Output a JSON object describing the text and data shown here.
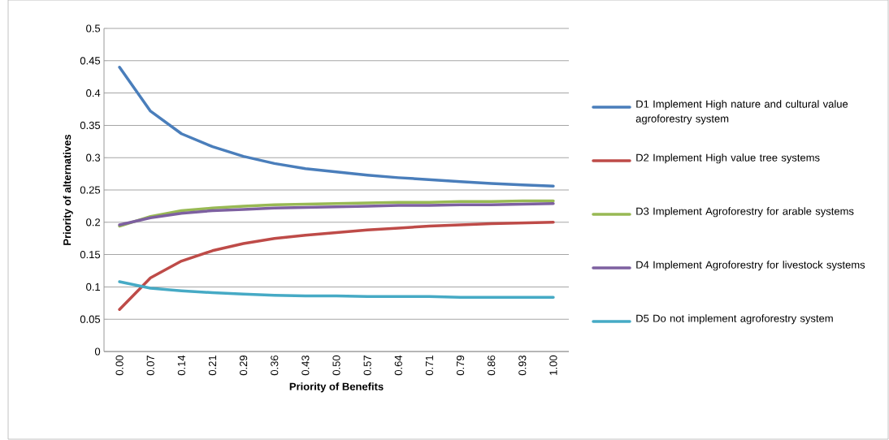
{
  "chart_data": {
    "type": "line",
    "xlabel": "Priority of Benefits",
    "ylabel": "Priority of alternatives",
    "categories": [
      "0.00",
      "0.07",
      "0.14",
      "0.21",
      "0.29",
      "0.36",
      "0.43",
      "0.50",
      "0.57",
      "0.64",
      "0.71",
      "0.79",
      "0.86",
      "0.93",
      "1.00"
    ],
    "ylim": [
      0,
      0.5
    ],
    "yticks": [
      0,
      0.05,
      0.1,
      0.15,
      0.2,
      0.25,
      0.3,
      0.35,
      0.4,
      0.45,
      0.5
    ],
    "grid": "y",
    "legend": "right",
    "marker": "none",
    "line_style": "solid",
    "series": [
      {
        "name": "D1 Implement High nature and cultural value agroforestry system",
        "color": "#4a7ebb",
        "values": [
          0.44,
          0.372,
          0.337,
          0.317,
          0.302,
          0.291,
          0.283,
          0.278,
          0.273,
          0.269,
          0.266,
          0.263,
          0.26,
          0.258,
          0.256
        ]
      },
      {
        "name": "D2 Implement High value tree systems",
        "color": "#be4b48",
        "values": [
          0.065,
          0.114,
          0.14,
          0.156,
          0.167,
          0.175,
          0.18,
          0.184,
          0.188,
          0.191,
          0.194,
          0.196,
          0.198,
          0.199,
          0.2
        ]
      },
      {
        "name": "D3 Implement Agroforestry for arable systems",
        "color": "#98b954",
        "values": [
          0.194,
          0.209,
          0.218,
          0.222,
          0.225,
          0.227,
          0.228,
          0.229,
          0.23,
          0.231,
          0.231,
          0.232,
          0.232,
          0.233,
          0.233
        ]
      },
      {
        "name": "D4 Implement Agroforestry for livestock systems",
        "color": "#7d60a0",
        "values": [
          0.196,
          0.207,
          0.214,
          0.218,
          0.22,
          0.222,
          0.223,
          0.224,
          0.225,
          0.226,
          0.226,
          0.227,
          0.227,
          0.228,
          0.229
        ]
      },
      {
        "name": "D5 Do not implement agroforestry system",
        "color": "#46aac5",
        "values": [
          0.108,
          0.098,
          0.094,
          0.091,
          0.089,
          0.087,
          0.086,
          0.086,
          0.085,
          0.085,
          0.085,
          0.084,
          0.084,
          0.084,
          0.084
        ]
      }
    ]
  }
}
